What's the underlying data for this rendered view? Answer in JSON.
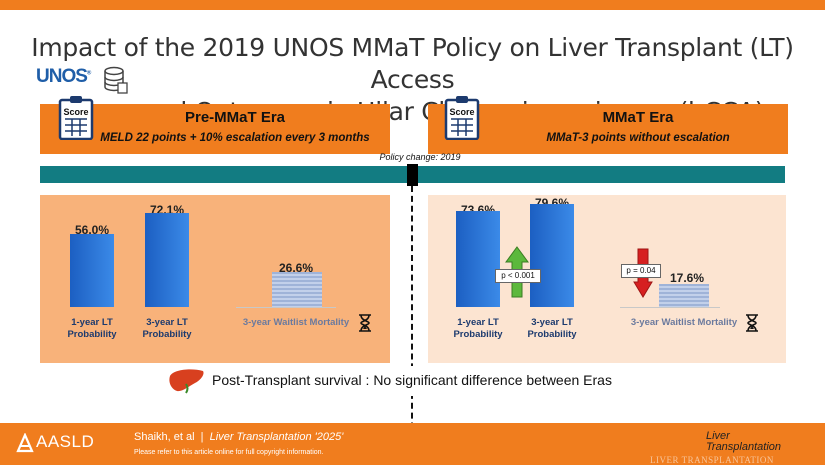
{
  "title": {
    "line1": "Impact of the 2019 UNOS MMaT Policy on Liver Transplant (LT) Access",
    "line2": "and Outcomes in Hilar Cholangiocarcinoma (hCCA)",
    "unos_logo": "UNOS"
  },
  "eras": {
    "pre": {
      "title": "Pre-MMaT Era",
      "subtitle": "MELD 22 points + 10% escalation every 3 months",
      "clip_label": "Score"
    },
    "mmat": {
      "title": "MMaT Era",
      "subtitle": "MMaT-3 points without escalation",
      "clip_label": "Score"
    }
  },
  "policy_change": "Policy change: 2019",
  "pre_panel": {
    "lt1": {
      "value": "56.0%",
      "label_l1": "1-year LT",
      "label_l2": "Probability"
    },
    "lt3": {
      "value": "72.1%",
      "label_l1": "3-year LT",
      "label_l2": "Probability"
    },
    "mort": {
      "value": "26.6%",
      "label": "3-year Waitlist Mortality"
    }
  },
  "mmat_panel": {
    "lt1": {
      "value": "73.6%",
      "label_l1": "1-year LT",
      "label_l2": "Probability"
    },
    "lt3": {
      "value": "79.6%",
      "label_l1": "3-year LT",
      "label_l2": "Probability"
    },
    "mort": {
      "value": "17.6%",
      "label": "3-year Waitlist Mortality"
    },
    "p_up": "p < 0.001",
    "p_down": "p = 0.04"
  },
  "chart_data": {
    "type": "bar",
    "series": [
      {
        "name": "Pre-MMaT Era",
        "values": [
          56.0,
          72.1,
          26.6
        ]
      },
      {
        "name": "MMaT Era",
        "values": [
          73.6,
          79.6,
          17.6
        ]
      }
    ],
    "categories": [
      "1-year LT Probability",
      "3-year LT Probability",
      "3-year Waitlist Mortality"
    ]
  },
  "survival_text": "Post-Transplant survival : No significant difference between Eras",
  "footer": {
    "logo": "AASLD",
    "authors": "Shaikh, et al",
    "separator": "|",
    "journal": "Liver Transplantation '2025'",
    "note": "Please refer to this article online for full copyright information.",
    "lt_logo_l1": "Liver",
    "lt_logo_l2": "Transplantation",
    "watermark": "LIVER TRANSPLANTATION"
  },
  "colors": {
    "orange": "#f07d1e",
    "teal": "#127c82",
    "bar_blue": "#1c5fc2",
    "arrow_green": "#5cb83c",
    "arrow_red": "#d62020"
  }
}
